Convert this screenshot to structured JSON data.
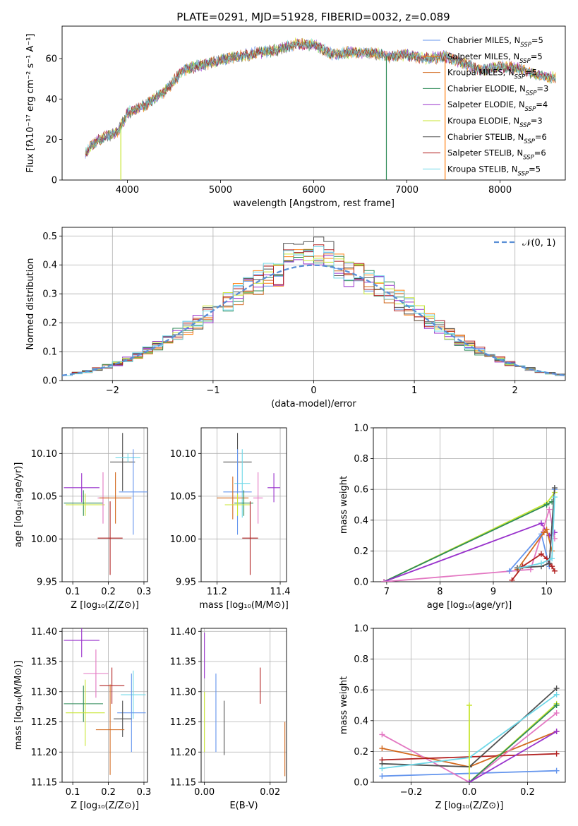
{
  "title": "PLATE=0291, MJD=51928, FIBERID=0032, z=0.089",
  "colors": {
    "Chabrier MILES": "#6495ed",
    "Salpeter MILES": "#ff7f0e",
    "Kroupa MILES": "#d2691e",
    "Chabrier ELODIE": "#2e8b57",
    "Salpeter ELODIE": "#9932cc",
    "Kroupa ELODIE": "#c8e632",
    "Chabrier STELIB": "#505050",
    "Salpeter STELIB": "#b22222",
    "Kroupa STELIB": "#6fd8e8",
    "pink": "#e377c2"
  },
  "chart_data": [
    {
      "id": "spectrum",
      "type": "line",
      "title": "PLATE=0291, MJD=51928, FIBERID=0032, z=0.089",
      "xlabel": "wavelength [Angstrom, rest frame]",
      "ylabel": "Flux [fλ10⁻¹⁷ erg cm⁻² s⁻¹ A⁻¹]",
      "xlim": [
        3300,
        8700
      ],
      "ylim": [
        0,
        76
      ],
      "xticks": [
        "4000",
        "5000",
        "6000",
        "7000",
        "8000"
      ],
      "yticks": [
        "0",
        "20",
        "40",
        "60"
      ],
      "legend_position": "top-right",
      "legend": [
        "Chabrier MILES, NSSP=5",
        "Salpeter MILES, NSSP=5",
        "Kroupa MILES, NSSP=5",
        "Chabrier ELODIE, NSSP=3",
        "Salpeter ELODIE, NSSP=4",
        "Kroupa ELODIE, NSSP=3",
        "Chabrier STELIB, NSSP=6",
        "Salpeter STELIB, NSSP=6",
        "Kroupa STELIB, NSSP=5"
      ],
      "continuum": {
        "x": [
          3550,
          3700,
          3900,
          4000,
          4200,
          4400,
          4600,
          4800,
          5000,
          5200,
          5400,
          5600,
          5800,
          6000,
          6200,
          6400,
          6600,
          6800,
          7000,
          7200,
          7400,
          7600,
          7800,
          8000,
          8200,
          8400,
          8600
        ],
        "y": [
          14,
          20,
          24,
          33,
          37,
          44,
          54,
          57,
          59,
          61,
          63,
          64,
          67,
          67,
          62,
          63,
          63,
          61,
          62,
          60,
          61,
          58,
          54,
          56,
          55,
          52,
          50
        ]
      },
      "dropouts": [
        {
          "x": 3545,
          "series": "Salpeter STELIB"
        },
        {
          "x": 3930,
          "series": "Kroupa ELODIE"
        },
        {
          "x": 6780,
          "series": "Chabrier ELODIE"
        },
        {
          "x": 7410,
          "series": "Salpeter MILES"
        }
      ]
    },
    {
      "id": "residuals",
      "type": "histogram",
      "xlabel": "(data-model)/error",
      "ylabel": "Normed distribution",
      "xlim": [
        -2.5,
        2.5
      ],
      "ylim": [
        0,
        0.53
      ],
      "xticks": [
        "−2",
        "−1",
        "0",
        "1",
        "2"
      ],
      "yticks": [
        "0.0",
        "0.1",
        "0.2",
        "0.3",
        "0.4",
        "0.5"
      ],
      "grid": true,
      "legend_position": "top-right",
      "legend": "𝒩(0, 1)",
      "peak_values": [
        0.45,
        0.46,
        0.44,
        0.43,
        0.42,
        0.44,
        0.51,
        0.48,
        0.47
      ]
    },
    {
      "id": "age-z",
      "type": "errorbar",
      "xlabel": "Z [log₁₀(Z/Z⊙)]",
      "ylabel": "age  [log₁₀(age/yr)]",
      "xlim": [
        0.07,
        0.31
      ],
      "ylim": [
        9.95,
        10.13
      ],
      "xticks": [
        "0.1",
        "0.2",
        "0.3"
      ],
      "yticks": [
        "9.95",
        "10.00",
        "10.05",
        "10.10"
      ],
      "points": [
        {
          "series": "Salpeter ELODIE",
          "x": 0.125,
          "y": 10.06,
          "xerr": 0.05,
          "yerr": 0.017
        },
        {
          "series": "Chabrier ELODIE",
          "x": 0.13,
          "y": 10.042,
          "xerr": 0.055,
          "yerr": 0.015
        },
        {
          "series": "Kroupa ELODIE",
          "x": 0.135,
          "y": 10.04,
          "xerr": 0.055,
          "yerr": 0.013
        },
        {
          "series": "pink",
          "x": 0.185,
          "y": 10.048,
          "xerr": 0.015,
          "yerr": 0.03
        },
        {
          "series": "Kroupa MILES",
          "x": 0.22,
          "y": 10.048,
          "xerr": 0.045,
          "yerr": 0.03
        },
        {
          "series": "Salpeter STELIB",
          "x": 0.205,
          "y": 10.001,
          "xerr": 0.035,
          "yerr": 0.043
        },
        {
          "series": "Chabrier STELIB",
          "x": 0.24,
          "y": 10.09,
          "xerr": 0.035,
          "yerr": 0.034
        },
        {
          "series": "Kroupa STELIB",
          "x": 0.255,
          "y": 10.095,
          "xerr": 0.035,
          "yerr": 0.005
        },
        {
          "series": "Chabrier MILES",
          "x": 0.27,
          "y": 10.055,
          "xerr": 0.04,
          "yerr": 0.05
        }
      ]
    },
    {
      "id": "age-mass",
      "type": "errorbar",
      "xlabel": "mass [log₁₀(M/M⊙)]",
      "ylabel": "",
      "xlim": [
        11.15,
        11.42
      ],
      "ylim": [
        9.95,
        10.13
      ],
      "xticks": [
        "11.2",
        "11.4"
      ],
      "yticks": [
        "9.95",
        "10.00",
        "10.05",
        "10.10"
      ],
      "points": [
        {
          "series": "Chabrier STELIB",
          "x": 11.265,
          "y": 10.09,
          "xerr": 0.045,
          "yerr": 0.034
        },
        {
          "series": "Kroupa STELIB",
          "x": 11.28,
          "y": 10.065,
          "xerr": 0.025,
          "yerr": 0.04
        },
        {
          "series": "Chabrier MILES",
          "x": 11.265,
          "y": 10.055,
          "xerr": 0.045,
          "yerr": 0.05
        },
        {
          "series": "Kroupa MILES",
          "x": 11.25,
          "y": 10.048,
          "xerr": 0.05,
          "yerr": 0.025
        },
        {
          "series": "Chabrier ELODIE",
          "x": 11.285,
          "y": 10.042,
          "xerr": 0.03,
          "yerr": 0.015
        },
        {
          "series": "Kroupa ELODIE",
          "x": 11.265,
          "y": 10.04,
          "xerr": 0.04,
          "yerr": 0.013
        },
        {
          "series": "pink",
          "x": 11.33,
          "y": 10.048,
          "xerr": 0.015,
          "yerr": 0.03
        },
        {
          "series": "Salpeter ELODIE",
          "x": 11.38,
          "y": 10.06,
          "xerr": 0.02,
          "yerr": 0.017
        },
        {
          "series": "Salpeter STELIB",
          "x": 11.305,
          "y": 10.001,
          "xerr": 0.025,
          "yerr": 0.043
        }
      ]
    },
    {
      "id": "weight-age",
      "type": "line",
      "xlabel": "age  [log₁₀(age/yr)]",
      "ylabel": "mass weight",
      "xlim": [
        6.75,
        10.35
      ],
      "ylim": [
        0,
        1.0
      ],
      "xticks": [
        "7",
        "8",
        "9",
        "10"
      ],
      "yticks": [
        "0.0",
        "0.2",
        "0.4",
        "0.6",
        "0.8",
        "1.0"
      ],
      "grid": true,
      "series": [
        {
          "name": "Kroupa ELODIE",
          "x": [
            6.95,
            10.0,
            10.15
          ],
          "y": [
            0.0,
            0.51,
            0.58
          ]
        },
        {
          "name": "Chabrier ELODIE",
          "x": [
            6.95,
            10.0,
            10.1
          ],
          "y": [
            0.0,
            0.5,
            0.52
          ]
        },
        {
          "name": "Salpeter ELODIE",
          "x": [
            6.95,
            9.9,
            10.05,
            10.15
          ],
          "y": [
            0.0,
            0.38,
            0.3,
            0.32
          ]
        },
        {
          "name": "pink",
          "x": [
            6.95,
            9.7,
            10.05,
            10.15
          ],
          "y": [
            0.0,
            0.08,
            0.47,
            0.28
          ]
        },
        {
          "name": "Chabrier MILES",
          "x": [
            9.3,
            9.9,
            10.05,
            10.15
          ],
          "y": [
            0.07,
            0.31,
            0.1,
            0.6
          ]
        },
        {
          "name": "Kroupa MILES",
          "x": [
            9.45,
            9.95,
            10.0,
            10.1
          ],
          "y": [
            0.08,
            0.32,
            0.34,
            0.2
          ]
        },
        {
          "name": "Salpeter STELIB",
          "x": [
            9.35,
            9.55,
            9.9,
            10.0,
            10.1,
            10.15
          ],
          "y": [
            0.01,
            0.1,
            0.18,
            0.15,
            0.1,
            0.07
          ]
        },
        {
          "name": "Chabrier STELIB",
          "x": [
            9.45,
            9.9,
            10.05,
            10.15
          ],
          "y": [
            0.09,
            0.1,
            0.12,
            0.61
          ]
        },
        {
          "name": "Kroupa STELIB",
          "x": [
            9.5,
            9.9,
            10.1,
            10.15
          ],
          "y": [
            0.09,
            0.12,
            0.15,
            0.55
          ]
        }
      ]
    },
    {
      "id": "mass-z",
      "type": "errorbar",
      "xlabel": "Z [log₁₀(Z/Z⊙)]",
      "ylabel": "mass [log₁₀(M/M⊙)]",
      "xlim": [
        0.07,
        0.31
      ],
      "ylim": [
        11.15,
        11.405
      ],
      "xticks": [
        "0.1",
        "0.2",
        "0.3"
      ],
      "yticks": [
        "11.15",
        "11.20",
        "11.25",
        "11.30",
        "11.35",
        "11.40"
      ],
      "points": [
        {
          "series": "Salpeter ELODIE",
          "x": 0.125,
          "y": 11.385,
          "xerr": 0.05,
          "yerr": 0.028
        },
        {
          "series": "pink",
          "x": 0.165,
          "y": 11.33,
          "xerr": 0.035,
          "yerr": 0.04
        },
        {
          "series": "Chabrier ELODIE",
          "x": 0.13,
          "y": 11.28,
          "xerr": 0.055,
          "yerr": 0.03
        },
        {
          "series": "Kroupa ELODIE",
          "x": 0.135,
          "y": 11.265,
          "xerr": 0.055,
          "yerr": 0.055
        },
        {
          "series": "Salpeter STELIB",
          "x": 0.21,
          "y": 11.31,
          "xerr": 0.035,
          "yerr": 0.03
        },
        {
          "series": "Kroupa STELIB",
          "x": 0.27,
          "y": 11.295,
          "xerr": 0.035,
          "yerr": 0.04
        },
        {
          "series": "Chabrier MILES",
          "x": 0.265,
          "y": 11.265,
          "xerr": 0.04,
          "yerr": 0.065
        },
        {
          "series": "Chabrier STELIB",
          "x": 0.24,
          "y": 11.255,
          "xerr": 0.025,
          "yerr": 0.03
        },
        {
          "series": "Kroupa MILES",
          "x": 0.205,
          "y": 11.237,
          "xerr": 0.04,
          "yerr": 0.075
        }
      ]
    },
    {
      "id": "mass-ebv",
      "type": "errorbar",
      "xlabel": "E(B-V)",
      "ylabel": "",
      "xlim": [
        -0.001,
        0.025
      ],
      "ylim": [
        11.15,
        11.405
      ],
      "xticks": [
        "0.00",
        "0.02"
      ],
      "yticks": [
        "11.15",
        "11.20",
        "11.25",
        "11.30",
        "11.35",
        "11.40"
      ],
      "points": [
        {
          "series": "Salpeter ELODIE",
          "x": 0.0,
          "y": 11.36,
          "xerr": 0,
          "yerr": 0.038
        },
        {
          "series": "Kroupa ELODIE",
          "x": 0.0,
          "y": 11.25,
          "xerr": 0,
          "yerr": 0.05
        },
        {
          "series": "Chabrier MILES",
          "x": 0.0035,
          "y": 11.265,
          "xerr": 0,
          "yerr": 0.065
        },
        {
          "series": "Chabrier STELIB",
          "x": 0.006,
          "y": 11.24,
          "xerr": 0,
          "yerr": 0.045
        },
        {
          "series": "Salpeter STELIB",
          "x": 0.017,
          "y": 11.31,
          "xerr": 0,
          "yerr": 0.03
        },
        {
          "series": "Kroupa MILES",
          "x": 0.0245,
          "y": 11.205,
          "xerr": 0,
          "yerr": 0.045
        }
      ]
    },
    {
      "id": "weight-z",
      "type": "line",
      "xlabel": "Z [log₁₀(Z/Z⊙)]",
      "ylabel": "mass weight",
      "xlim": [
        -0.33,
        0.33
      ],
      "ylim": [
        0,
        1.0
      ],
      "xticks": [
        "−0.2",
        "0.0",
        "0.2"
      ],
      "yticks": [
        "0.0",
        "0.2",
        "0.4",
        "0.6",
        "0.8",
        "1.0"
      ],
      "grid": true,
      "series": [
        {
          "name": "Chabrier MILES",
          "x": [
            -0.3,
            0.3
          ],
          "y": [
            0.04,
            0.075
          ]
        },
        {
          "name": "Kroupa MILES",
          "x": [
            -0.3,
            0.0,
            0.3
          ],
          "y": [
            0.22,
            0.1,
            0.33
          ]
        },
        {
          "name": "pink",
          "x": [
            -0.3,
            0.0,
            0.3
          ],
          "y": [
            0.31,
            0.0,
            0.45
          ]
        },
        {
          "name": "Salpeter STELIB",
          "x": [
            -0.3,
            0.3
          ],
          "y": [
            0.145,
            0.185
          ]
        },
        {
          "name": "Chabrier STELIB",
          "x": [
            -0.3,
            0.0,
            0.3
          ],
          "y": [
            0.12,
            0.1,
            0.61
          ]
        },
        {
          "name": "Kroupa STELIB",
          "x": [
            -0.3,
            0.0,
            0.3
          ],
          "y": [
            0.09,
            0.16,
            0.57
          ]
        },
        {
          "name": "Kroupa ELODIE",
          "x": [
            0.0,
            0.0,
            0.3
          ],
          "y": [
            0.5,
            0.0,
            0.51
          ]
        },
        {
          "name": "Chabrier ELODIE",
          "x": [
            0.0,
            0.3
          ],
          "y": [
            0.0,
            0.5
          ]
        },
        {
          "name": "Salpeter ELODIE",
          "x": [
            0.0,
            0.3
          ],
          "y": [
            0.0,
            0.33
          ]
        }
      ]
    }
  ]
}
